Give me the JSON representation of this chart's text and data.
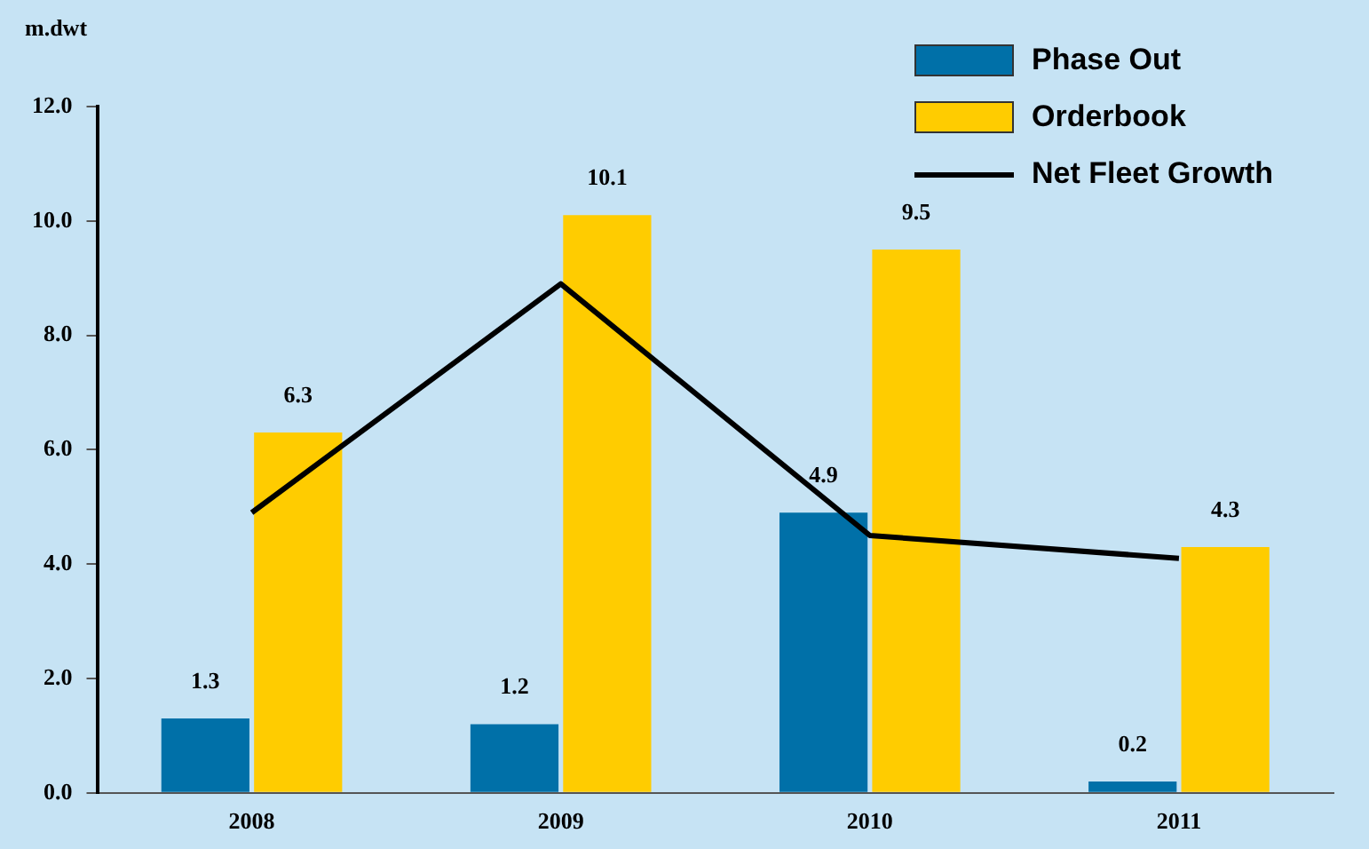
{
  "chart_data": {
    "type": "bar",
    "ylabel": "m.dwt",
    "categories": [
      "2008",
      "2009",
      "2010",
      "2011"
    ],
    "series": [
      {
        "name": "Phase Out",
        "color": "#0070a8",
        "values": [
          1.3,
          1.2,
          4.9,
          0.2
        ],
        "value_labels": [
          "1.3",
          "1.2",
          "4.9",
          "0.2"
        ]
      },
      {
        "name": "Orderbook",
        "color": "#ffcc00",
        "values": [
          6.3,
          10.1,
          9.5,
          4.3
        ],
        "value_labels": [
          "6.3",
          "10.1",
          "9.5",
          "4.3"
        ]
      },
      {
        "name": "Net Fleet Growth",
        "type": "line",
        "color": "#000000",
        "values": [
          4.9,
          8.9,
          4.5,
          4.1
        ]
      }
    ],
    "ylim": [
      0,
      12
    ],
    "yticks": [
      {
        "value": 0,
        "label": "0.0"
      },
      {
        "value": 2,
        "label": "2.0"
      },
      {
        "value": 4,
        "label": "4.0"
      },
      {
        "value": 6,
        "label": "6.0"
      },
      {
        "value": 8,
        "label": "8.0"
      },
      {
        "value": 10,
        "label": "10.0"
      },
      {
        "value": 12,
        "label": "12.0"
      }
    ],
    "grid": false,
    "legend": "top right",
    "marker": "none"
  }
}
